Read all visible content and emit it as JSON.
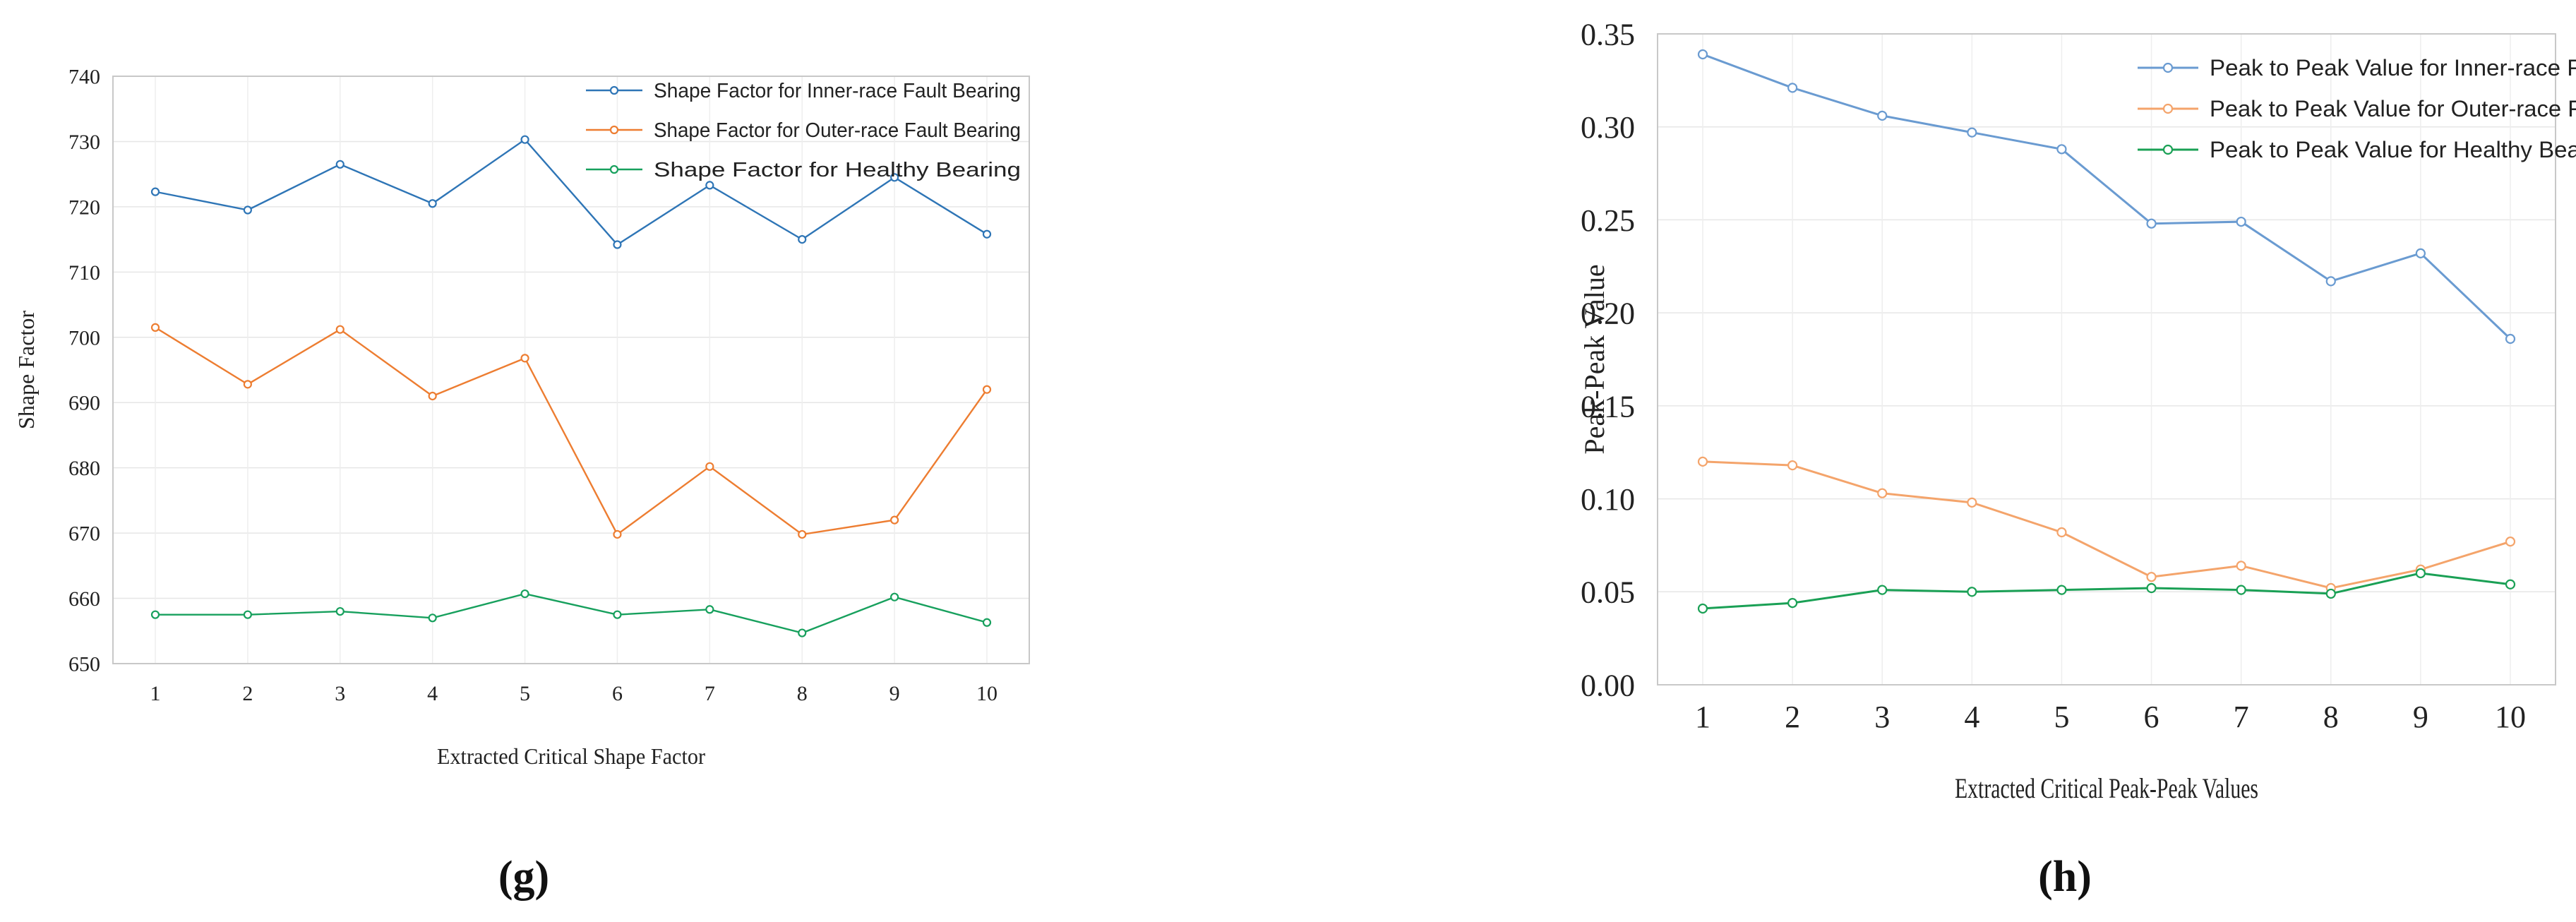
{
  "chart_data": [
    {
      "type": "line",
      "panel_label": "(g)",
      "xlabel": "Extracted Critical Shape Factor",
      "ylabel": "Shape Factor",
      "categories": [
        "1",
        "2",
        "3",
        "4",
        "5",
        "6",
        "7",
        "8",
        "9",
        "10"
      ],
      "ylim": [
        650,
        740
      ],
      "yticks": [
        "650",
        "660",
        "670",
        "680",
        "690",
        "700",
        "710",
        "720",
        "730",
        "740"
      ],
      "grid": true,
      "legend_position": "top-right",
      "series": [
        {
          "name": "Shape Factor for Inner-race Fault Bearing",
          "color": "#2E75B6",
          "values": [
            722.3,
            719.5,
            726.5,
            720.5,
            730.3,
            714.2,
            723.3,
            715.0,
            724.5,
            715.8
          ]
        },
        {
          "name": "Shape Factor for Outer-race Fault Bearing",
          "color": "#ED7D31",
          "values": [
            701.5,
            692.8,
            701.2,
            691.0,
            696.8,
            669.8,
            680.2,
            669.8,
            672.0,
            692.0
          ]
        },
        {
          "name": "Shape Factor for Healthy Bearing",
          "color": "#17A05D",
          "values": [
            657.5,
            657.5,
            658.0,
            657.0,
            660.7,
            657.5,
            658.3,
            654.7,
            660.2,
            656.3
          ]
        }
      ]
    },
    {
      "type": "line",
      "panel_label": "(h)",
      "xlabel": "Extracted Critical Peak-Peak Values",
      "ylabel": "Peak-Peak Value",
      "categories": [
        "1",
        "2",
        "3",
        "4",
        "5",
        "6",
        "7",
        "8",
        "9",
        "10"
      ],
      "ylim": [
        0,
        0.35
      ],
      "yticks": [
        "0.00",
        "0.05",
        "0.10",
        "0.15",
        "0.20",
        "0.25",
        "0.30",
        "0.35"
      ],
      "grid": true,
      "legend_position": "top-right",
      "series": [
        {
          "name": "Peak to Peak Value for Inner-race Fault",
          "color": "#6A9BD1",
          "values": [
            0.339,
            0.321,
            0.306,
            0.297,
            0.288,
            0.248,
            0.249,
            0.217,
            0.232,
            0.186
          ]
        },
        {
          "name": "Peak to Peak Value for Outer-race Fault",
          "color": "#F4A46B",
          "values": [
            0.12,
            0.118,
            0.103,
            0.098,
            0.082,
            0.058,
            0.064,
            0.052,
            0.062,
            0.077
          ]
        },
        {
          "name": "Peak to Peak Value for Healthy Bearing",
          "color": "#1AA055",
          "values": [
            0.041,
            0.044,
            0.051,
            0.05,
            0.051,
            0.052,
            0.051,
            0.049,
            0.06,
            0.054
          ]
        }
      ]
    }
  ]
}
